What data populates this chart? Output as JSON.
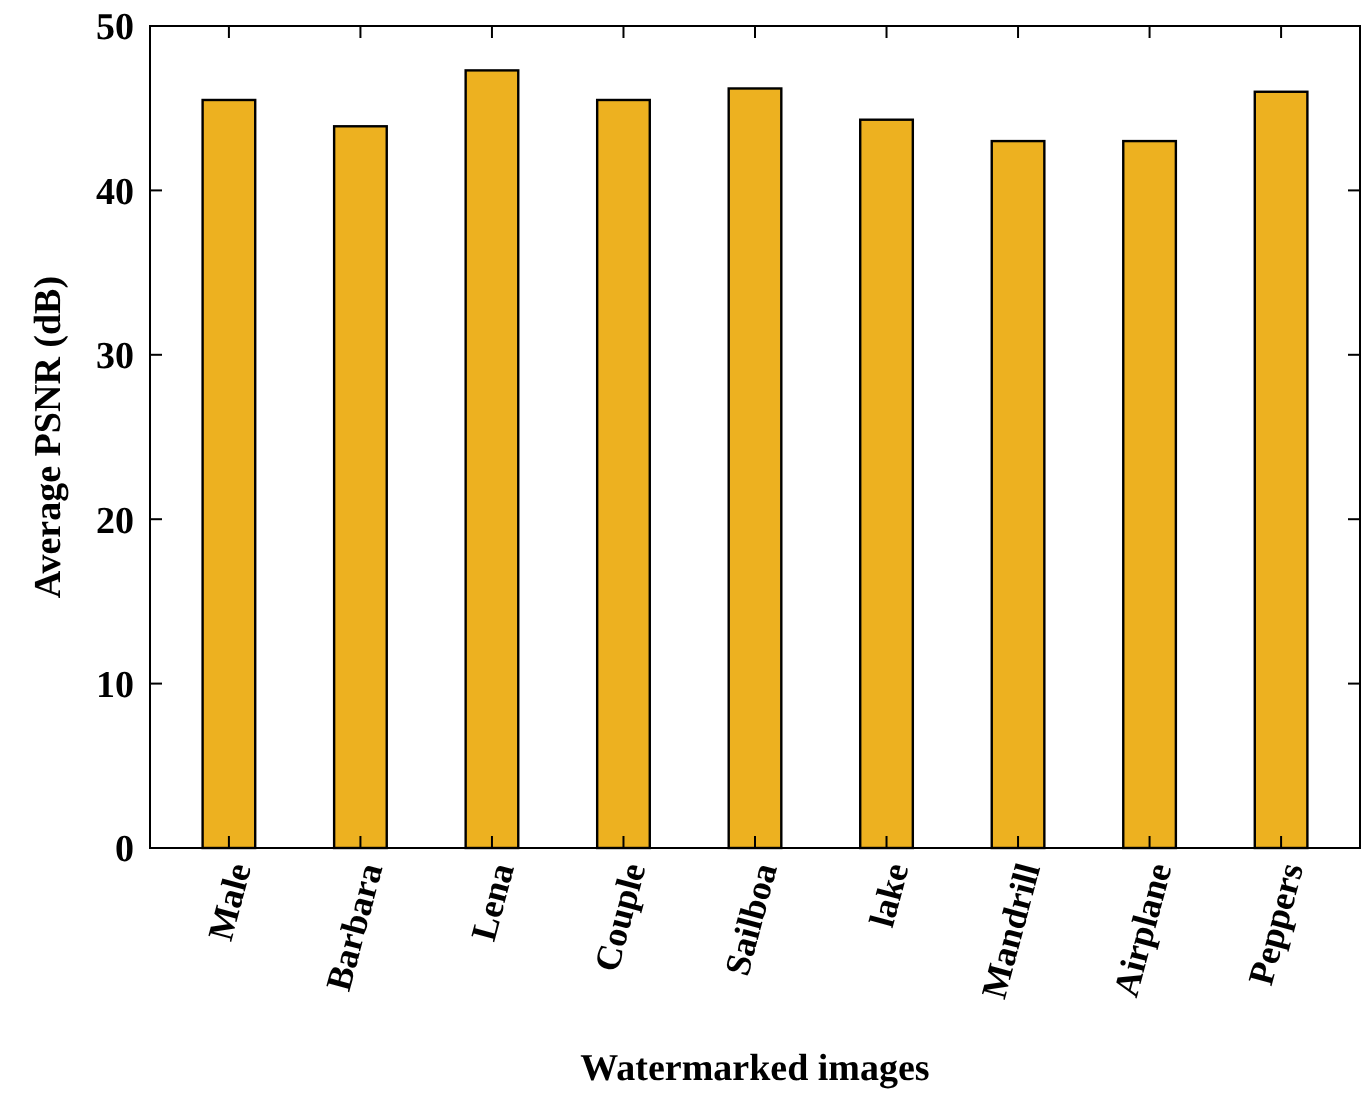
{
  "chart_data": {
    "type": "bar",
    "xlabel": "Watermarked images",
    "ylabel": "Average PSNR (dB)",
    "categories": [
      "Male",
      "Barbara",
      "Lena",
      "Couple",
      "Sailboa",
      "lake",
      "Mandrill",
      "Airplane",
      "Peppers"
    ],
    "values": [
      45.5,
      43.9,
      47.3,
      45.5,
      46.2,
      44.3,
      43.0,
      43.0,
      46.0
    ],
    "color": "#edb120",
    "ylim": [
      0,
      50
    ],
    "yticks": [
      0,
      10,
      20,
      30,
      40,
      50
    ],
    "grid": false
  }
}
